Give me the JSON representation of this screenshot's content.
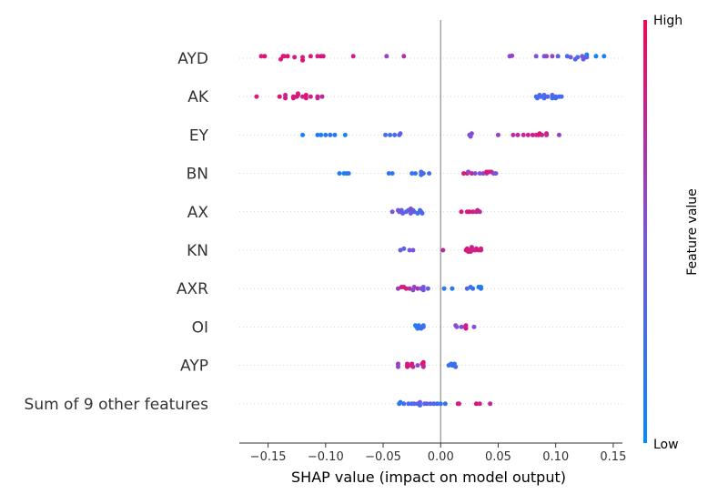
{
  "chart_data": {
    "type": "scatter",
    "subtype": "shap-beeswarm",
    "title": "",
    "xlabel": "SHAP value (impact on model output)",
    "ylabel": "",
    "xlim": [
      -0.175,
      0.158
    ],
    "x_ticks": [
      -0.15,
      -0.1,
      -0.05,
      0.0,
      0.05,
      0.1,
      0.15
    ],
    "x_tick_labels": [
      "−0.15",
      "−0.10",
      "−0.05",
      "0.00",
      "0.05",
      "0.10",
      "0.15"
    ],
    "zero_line": 0.0,
    "grid": false,
    "colorbar": {
      "title": "Feature value",
      "high_label": "High",
      "low_label": "Low",
      "low_color": "#008bfb",
      "high_color": "#ff0052"
    },
    "features": [
      {
        "name": "AYD",
        "points": [
          [
            -0.156,
            0.2,
            0.85
          ],
          [
            -0.153,
            0.2,
            0.9
          ],
          [
            -0.139,
            -0.1,
            0.85
          ],
          [
            -0.137,
            0.2,
            0.9
          ],
          [
            -0.136,
            0.2,
            0.85
          ],
          [
            -0.133,
            0.2,
            0.9
          ],
          [
            -0.127,
            0.1,
            0.85
          ],
          [
            -0.12,
            0.1,
            0.8
          ],
          [
            -0.12,
            -0.2,
            0.9
          ],
          [
            -0.113,
            0.2,
            0.85
          ],
          [
            -0.107,
            0.2,
            0.8
          ],
          [
            -0.104,
            0.2,
            0.9
          ],
          [
            -0.102,
            0.2,
            0.85
          ],
          [
            -0.076,
            0.2,
            0.8
          ],
          [
            -0.047,
            0.2,
            0.6
          ],
          [
            -0.032,
            0.2,
            0.7
          ],
          [
            0.06,
            0.2,
            0.55
          ],
          [
            0.062,
            0.25,
            0.6
          ],
          [
            0.083,
            0.2,
            0.5
          ],
          [
            0.09,
            0.2,
            0.45
          ],
          [
            0.092,
            0.2,
            0.6
          ],
          [
            0.097,
            0.2,
            0.55
          ],
          [
            0.102,
            0.2,
            0.4
          ],
          [
            0.11,
            0.2,
            0.3
          ],
          [
            0.113,
            0.1,
            0.45
          ],
          [
            0.117,
            -0.1,
            0.35
          ],
          [
            0.119,
            0.1,
            0.3
          ],
          [
            0.123,
            0.2,
            0.5
          ],
          [
            0.124,
            -0.1,
            0.4
          ],
          [
            0.126,
            0.1,
            0.35
          ],
          [
            0.127,
            0.1,
            0.45
          ],
          [
            0.127,
            0.35,
            0.15
          ],
          [
            0.135,
            0.2,
            0.05
          ],
          [
            0.142,
            0.2,
            0.1
          ]
        ]
      },
      {
        "name": "AK",
        "points": [
          [
            -0.16,
            0.0,
            0.85
          ],
          [
            -0.14,
            0.0,
            0.9
          ],
          [
            -0.135,
            -0.15,
            0.85
          ],
          [
            -0.135,
            0.15,
            0.8
          ],
          [
            -0.128,
            0.0,
            0.8
          ],
          [
            -0.128,
            -0.15,
            0.85
          ],
          [
            -0.125,
            0.0,
            0.9
          ],
          [
            -0.124,
            0.15,
            0.8
          ],
          [
            -0.124,
            0.3,
            0.85
          ],
          [
            -0.12,
            0.0,
            0.8
          ],
          [
            -0.117,
            0.15,
            0.9
          ],
          [
            -0.117,
            -0.15,
            0.85
          ],
          [
            -0.113,
            0.0,
            0.8
          ],
          [
            -0.107,
            0.0,
            0.85
          ],
          [
            -0.107,
            -0.15,
            0.75
          ],
          [
            -0.103,
            0.0,
            0.75
          ],
          [
            0.083,
            0.0,
            0.35
          ],
          [
            0.084,
            -0.15,
            0.25
          ],
          [
            0.086,
            0.15,
            0.3
          ],
          [
            0.087,
            0.0,
            0.35
          ],
          [
            0.09,
            -0.15,
            0.25
          ],
          [
            0.09,
            0.15,
            0.3
          ],
          [
            0.093,
            0.0,
            0.4
          ],
          [
            0.097,
            -0.15,
            0.2
          ],
          [
            0.097,
            0.15,
            0.3
          ],
          [
            0.1,
            0.0,
            0.35
          ],
          [
            0.1,
            -0.15,
            0.3
          ],
          [
            0.103,
            0.0,
            0.25
          ],
          [
            0.105,
            0.0,
            0.3
          ]
        ]
      },
      {
        "name": "EY",
        "points": [
          [
            -0.12,
            0.0,
            0.1
          ],
          [
            -0.107,
            0.0,
            0.15
          ],
          [
            -0.104,
            0.0,
            0.1
          ],
          [
            -0.1,
            0.0,
            0.2
          ],
          [
            -0.096,
            0.0,
            0.15
          ],
          [
            -0.092,
            0.0,
            0.2
          ],
          [
            -0.083,
            0.0,
            0.1
          ],
          [
            -0.048,
            0.0,
            0.3
          ],
          [
            -0.044,
            0.0,
            0.25
          ],
          [
            -0.04,
            0.0,
            0.3
          ],
          [
            -0.036,
            0.0,
            0.35
          ],
          [
            -0.035,
            0.15,
            0.4
          ],
          [
            0.025,
            0.0,
            0.5
          ],
          [
            0.027,
            0.15,
            0.55
          ],
          [
            0.026,
            -0.15,
            0.5
          ],
          [
            0.05,
            0.0,
            0.6
          ],
          [
            0.063,
            0.0,
            0.7
          ],
          [
            0.067,
            0.0,
            0.75
          ],
          [
            0.072,
            0.0,
            0.8
          ],
          [
            0.076,
            0.0,
            0.8
          ],
          [
            0.08,
            0.0,
            0.85
          ],
          [
            0.083,
            0.0,
            0.75
          ],
          [
            0.085,
            0.0,
            0.85
          ],
          [
            0.086,
            0.15,
            0.9
          ],
          [
            0.088,
            0.0,
            0.8
          ],
          [
            0.092,
            0.15,
            0.85
          ],
          [
            0.092,
            0.0,
            0.75
          ],
          [
            0.103,
            0.0,
            0.6
          ]
        ]
      },
      {
        "name": "BN",
        "points": [
          [
            -0.088,
            0.0,
            0.1
          ],
          [
            -0.084,
            0.0,
            0.15
          ],
          [
            -0.082,
            0.0,
            0.1
          ],
          [
            -0.08,
            0.0,
            0.2
          ],
          [
            -0.045,
            0.0,
            0.15
          ],
          [
            -0.042,
            0.0,
            0.2
          ],
          [
            -0.025,
            0.0,
            0.25
          ],
          [
            -0.022,
            0.0,
            0.2
          ],
          [
            -0.017,
            0.15,
            0.3
          ],
          [
            -0.017,
            -0.15,
            0.25
          ],
          [
            -0.015,
            0.0,
            0.3
          ],
          [
            -0.01,
            0.0,
            0.25
          ],
          [
            0.02,
            0.0,
            0.85
          ],
          [
            0.023,
            0.0,
            0.9
          ],
          [
            0.024,
            0.15,
            0.55
          ],
          [
            0.027,
            0.0,
            0.8
          ],
          [
            0.03,
            0.0,
            0.55
          ],
          [
            0.034,
            0.0,
            0.5
          ],
          [
            0.037,
            0.0,
            0.6
          ],
          [
            0.04,
            0.0,
            0.55
          ],
          [
            0.04,
            0.15,
            0.9
          ],
          [
            0.042,
            0.15,
            0.85
          ],
          [
            0.044,
            0.15,
            0.8
          ],
          [
            0.046,
            0.0,
            0.6
          ],
          [
            0.048,
            0.0,
            0.5
          ]
        ]
      },
      {
        "name": "AX",
        "points": [
          [
            -0.042,
            0.0,
            0.5
          ],
          [
            -0.037,
            0.15,
            0.45
          ],
          [
            -0.034,
            0.15,
            0.45
          ],
          [
            -0.036,
            0.0,
            0.45
          ],
          [
            -0.033,
            -0.15,
            0.4
          ],
          [
            -0.03,
            0.0,
            0.35
          ],
          [
            -0.028,
            0.15,
            0.3
          ],
          [
            -0.026,
            -0.15,
            0.5
          ],
          [
            -0.024,
            0.15,
            0.35
          ],
          [
            -0.023,
            0.0,
            0.3
          ],
          [
            -0.02,
            -0.15,
            0.25
          ],
          [
            -0.018,
            0.15,
            0.3
          ],
          [
            -0.017,
            0.0,
            0.35
          ],
          [
            -0.016,
            -0.15,
            0.3
          ],
          [
            -0.026,
            0.3,
            0.55
          ],
          [
            0.018,
            0.0,
            0.85
          ],
          [
            0.023,
            0.0,
            0.8
          ],
          [
            0.025,
            0.0,
            0.9
          ],
          [
            0.028,
            0.0,
            0.85
          ],
          [
            0.031,
            0.0,
            0.75
          ],
          [
            0.034,
            0.0,
            0.7
          ],
          [
            0.032,
            0.15,
            0.8
          ]
        ]
      },
      {
        "name": "KN",
        "points": [
          [
            -0.035,
            0.0,
            0.45
          ],
          [
            -0.032,
            0.15,
            0.3
          ],
          [
            -0.027,
            0.0,
            0.5
          ],
          [
            -0.024,
            0.0,
            0.5
          ],
          [
            0.002,
            0.0,
            0.75
          ],
          [
            0.022,
            0.0,
            0.85
          ],
          [
            0.023,
            0.15,
            0.9
          ],
          [
            0.025,
            0.0,
            0.8
          ],
          [
            0.026,
            -0.15,
            0.85
          ],
          [
            0.027,
            0.15,
            0.8
          ],
          [
            0.028,
            0.0,
            0.75
          ],
          [
            0.027,
            0.3,
            0.8
          ],
          [
            0.03,
            0.0,
            0.8
          ],
          [
            0.031,
            0.15,
            0.85
          ],
          [
            0.033,
            0.0,
            0.9
          ],
          [
            0.035,
            0.15,
            0.85
          ],
          [
            0.035,
            0.0,
            0.8
          ],
          [
            0.024,
            -0.15,
            0.85
          ]
        ]
      },
      {
        "name": "AXR",
        "points": [
          [
            -0.037,
            0.0,
            0.6
          ],
          [
            -0.034,
            0.15,
            0.85
          ],
          [
            -0.032,
            0.15,
            0.8
          ],
          [
            -0.03,
            0.0,
            0.85
          ],
          [
            -0.027,
            0.0,
            0.75
          ],
          [
            -0.023,
            0.15,
            0.6
          ],
          [
            -0.024,
            -0.15,
            0.55
          ],
          [
            -0.02,
            0.0,
            0.7
          ],
          [
            -0.017,
            0.0,
            0.5
          ],
          [
            -0.015,
            0.15,
            0.45
          ],
          [
            -0.015,
            -0.15,
            0.5
          ],
          [
            -0.011,
            0.0,
            0.4
          ],
          [
            0.003,
            0.0,
            0.2
          ],
          [
            0.01,
            0.0,
            0.15
          ],
          [
            0.023,
            0.0,
            0.35
          ],
          [
            0.026,
            0.15,
            0.25
          ],
          [
            0.028,
            0.0,
            0.2
          ],
          [
            0.033,
            0.15,
            0.15
          ],
          [
            0.035,
            0.0,
            0.2
          ],
          [
            0.035,
            0.15,
            0.1
          ]
        ]
      },
      {
        "name": "OI",
        "points": [
          [
            -0.022,
            0.15,
            0.1
          ],
          [
            -0.019,
            0.15,
            0.15
          ],
          [
            -0.015,
            0.15,
            0.2
          ],
          [
            -0.021,
            0.0,
            0.15
          ],
          [
            -0.018,
            0.0,
            0.2
          ],
          [
            -0.015,
            0.0,
            0.25
          ],
          [
            -0.02,
            -0.15,
            0.2
          ],
          [
            -0.017,
            -0.15,
            0.25
          ],
          [
            0.013,
            0.15,
            0.55
          ],
          [
            0.014,
            0.0,
            0.5
          ],
          [
            0.018,
            0.0,
            0.55
          ],
          [
            0.021,
            0.0,
            0.6
          ],
          [
            0.022,
            0.15,
            0.85
          ],
          [
            0.022,
            -0.15,
            0.8
          ],
          [
            0.029,
            0.0,
            0.5
          ]
        ]
      },
      {
        "name": "AYP",
        "points": [
          [
            -0.037,
            0.15,
            0.6
          ],
          [
            -0.037,
            -0.15,
            0.55
          ],
          [
            -0.029,
            0.15,
            0.8
          ],
          [
            -0.029,
            0.0,
            0.85
          ],
          [
            -0.029,
            -0.15,
            0.9
          ],
          [
            -0.026,
            0.0,
            0.75
          ],
          [
            -0.025,
            0.15,
            0.85
          ],
          [
            -0.024,
            -0.15,
            0.8
          ],
          [
            -0.02,
            0.0,
            0.55
          ],
          [
            -0.016,
            0.15,
            0.85
          ],
          [
            -0.015,
            0.0,
            0.8
          ],
          [
            -0.015,
            -0.15,
            0.75
          ],
          [
            -0.015,
            0.3,
            0.9
          ],
          [
            0.007,
            0.0,
            0.25
          ],
          [
            0.009,
            0.15,
            0.2
          ],
          [
            0.01,
            0.0,
            0.2
          ],
          [
            0.012,
            0.15,
            0.25
          ],
          [
            0.013,
            -0.15,
            0.3
          ],
          [
            0.011,
            0.0,
            0.2
          ]
        ]
      },
      {
        "name": "Sum of 9 other features",
        "points": [
          [
            -0.036,
            0.0,
            0.2
          ],
          [
            -0.035,
            0.15,
            0.15
          ],
          [
            -0.032,
            0.0,
            0.3
          ],
          [
            -0.028,
            0.0,
            0.25
          ],
          [
            -0.025,
            0.0,
            0.35
          ],
          [
            -0.023,
            0.0,
            0.3
          ],
          [
            -0.02,
            0.0,
            0.4
          ],
          [
            -0.018,
            0.15,
            0.45
          ],
          [
            -0.018,
            -0.15,
            0.3
          ],
          [
            -0.014,
            0.0,
            0.35
          ],
          [
            -0.012,
            0.0,
            0.4
          ],
          [
            -0.009,
            0.0,
            0.35
          ],
          [
            -0.006,
            0.0,
            0.3
          ],
          [
            -0.003,
            0.0,
            0.25
          ],
          [
            0.0,
            0.0,
            0.2
          ],
          [
            0.004,
            0.0,
            0.2
          ],
          [
            0.015,
            0.0,
            0.85
          ],
          [
            0.016,
            0.0,
            0.8
          ],
          [
            0.031,
            0.0,
            0.9
          ],
          [
            0.034,
            0.0,
            0.8
          ],
          [
            0.043,
            0.0,
            0.75
          ]
        ]
      }
    ]
  }
}
